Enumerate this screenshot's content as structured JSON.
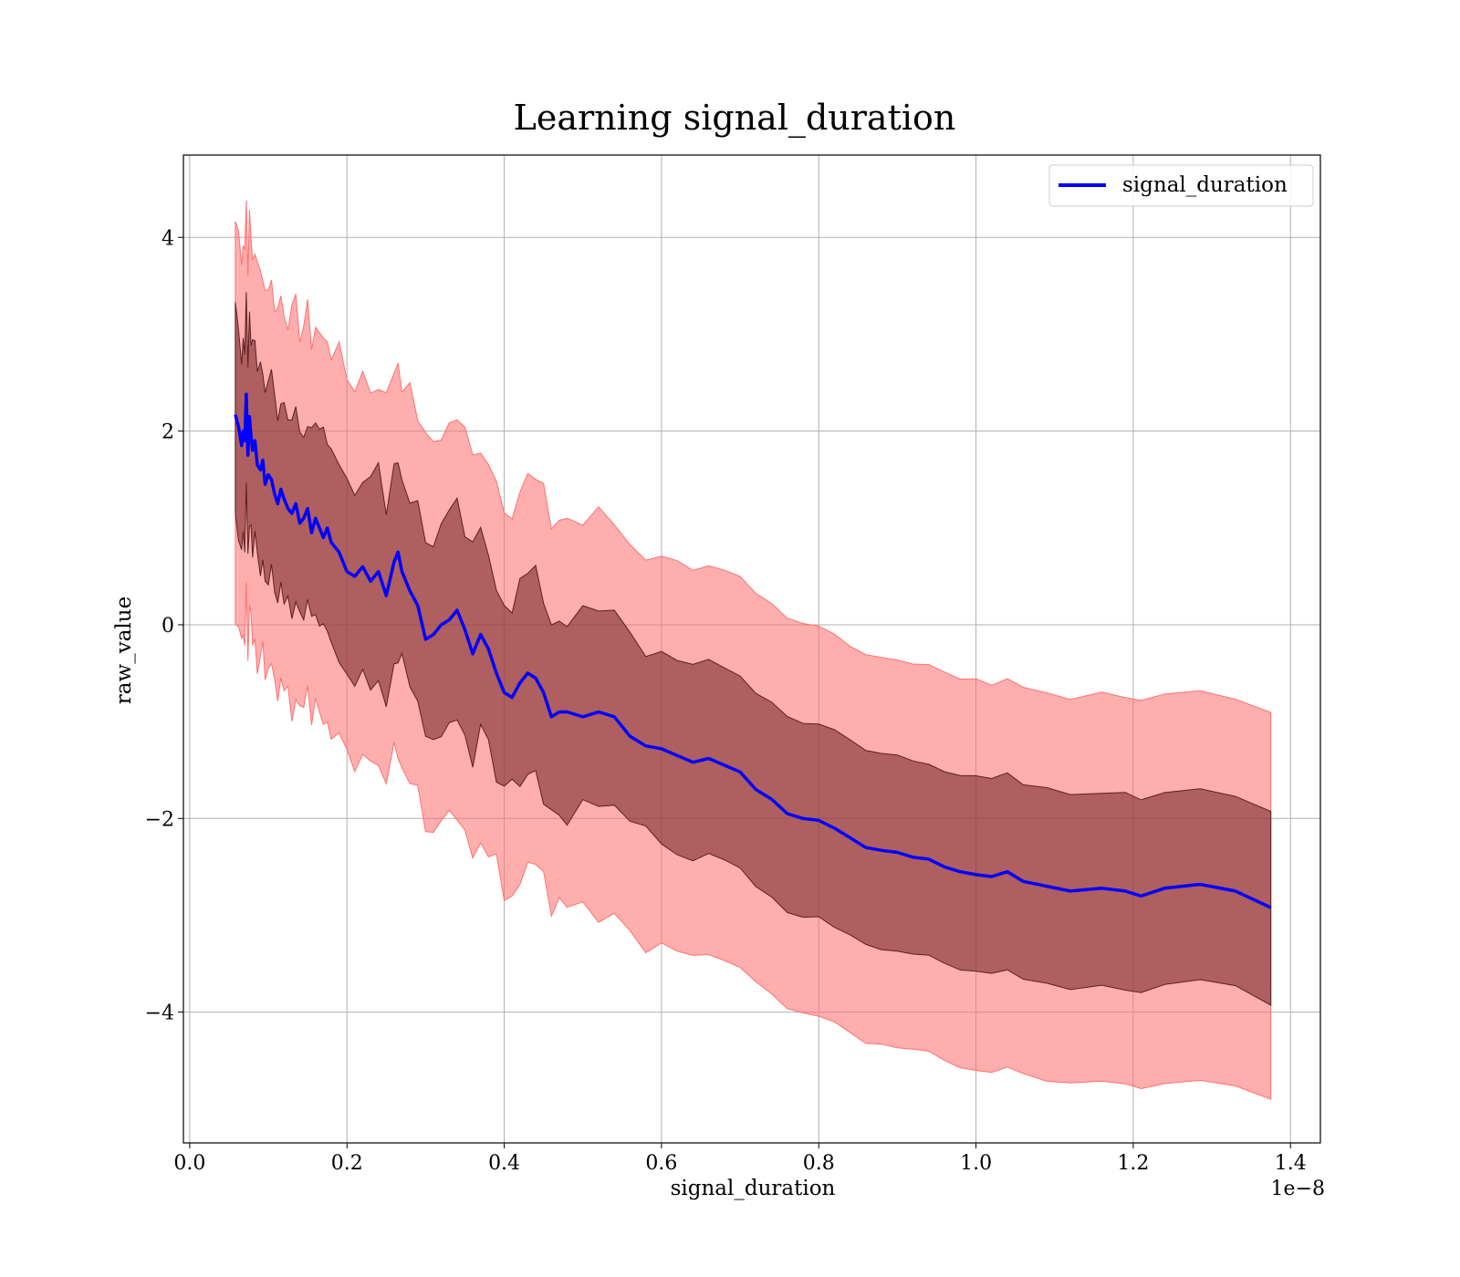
{
  "chart_data": {
    "type": "line",
    "title": "Learning signal_duration",
    "xlabel": "signal_duration",
    "ylabel": "raw_value",
    "x_offset_label": "1e−8",
    "xlim": [
      -0.008,
      1.438
    ],
    "ylim": [
      -5.35,
      4.85
    ],
    "x_ticks": [
      0.0,
      0.2,
      0.4,
      0.6,
      0.8,
      1.0,
      1.2,
      1.4
    ],
    "x_tick_labels": [
      "0.0",
      "0.2",
      "0.4",
      "0.6",
      "0.8",
      "1.0",
      "1.2",
      "1.4"
    ],
    "y_ticks": [
      4,
      2,
      0,
      -2,
      -4
    ],
    "y_tick_labels": [
      "4",
      "2",
      "0",
      "−2",
      "−4"
    ],
    "grid": true,
    "legend_position": "top-right",
    "colors": {
      "line": "#0000ff",
      "outer_band": "#ff6b6b",
      "outer_band_edge": "#ff7070",
      "inner_band": "#7a2a2a",
      "inner_band_edge": "#5a2020",
      "grid": "#b0b0b0"
    },
    "series": [
      {
        "name": "signal_duration",
        "x": [
          0.058,
          0.062,
          0.066,
          0.068,
          0.07,
          0.072,
          0.074,
          0.076,
          0.078,
          0.08,
          0.083,
          0.086,
          0.09,
          0.093,
          0.096,
          0.1,
          0.104,
          0.108,
          0.112,
          0.116,
          0.12,
          0.125,
          0.13,
          0.135,
          0.14,
          0.145,
          0.15,
          0.155,
          0.16,
          0.165,
          0.17,
          0.175,
          0.18,
          0.19,
          0.2,
          0.21,
          0.22,
          0.23,
          0.24,
          0.25,
          0.26,
          0.265,
          0.27,
          0.28,
          0.29,
          0.3,
          0.31,
          0.32,
          0.33,
          0.34,
          0.35,
          0.36,
          0.37,
          0.38,
          0.39,
          0.4,
          0.41,
          0.42,
          0.43,
          0.44,
          0.45,
          0.46,
          0.47,
          0.48,
          0.5,
          0.52,
          0.54,
          0.56,
          0.58,
          0.6,
          0.62,
          0.64,
          0.66,
          0.68,
          0.7,
          0.72,
          0.74,
          0.76,
          0.78,
          0.8,
          0.82,
          0.84,
          0.86,
          0.88,
          0.9,
          0.92,
          0.94,
          0.96,
          0.98,
          1.0,
          1.02,
          1.04,
          1.06,
          1.09,
          1.12,
          1.16,
          1.19,
          1.21,
          1.24,
          1.285,
          1.33,
          1.375
        ],
        "y": [
          2.17,
          2.05,
          1.85,
          2.0,
          1.9,
          2.38,
          1.75,
          2.15,
          1.95,
          1.8,
          1.9,
          1.65,
          1.6,
          1.7,
          1.45,
          1.55,
          1.5,
          1.35,
          1.25,
          1.4,
          1.3,
          1.2,
          1.15,
          1.25,
          1.05,
          1.1,
          1.2,
          0.95,
          1.1,
          1.0,
          0.9,
          1.0,
          0.85,
          0.75,
          0.55,
          0.5,
          0.6,
          0.45,
          0.55,
          0.3,
          0.65,
          0.75,
          0.55,
          0.35,
          0.2,
          -0.15,
          -0.1,
          0.0,
          0.05,
          0.15,
          -0.05,
          -0.3,
          -0.1,
          -0.25,
          -0.5,
          -0.7,
          -0.75,
          -0.6,
          -0.5,
          -0.55,
          -0.7,
          -0.95,
          -0.9,
          -0.9,
          -0.95,
          -0.9,
          -0.95,
          -1.15,
          -1.25,
          -1.28,
          -1.35,
          -1.42,
          -1.38,
          -1.45,
          -1.52,
          -1.7,
          -1.8,
          -1.95,
          -2.0,
          -2.02,
          -2.1,
          -2.2,
          -2.3,
          -2.33,
          -2.35,
          -2.4,
          -2.42,
          -2.5,
          -2.55,
          -2.58,
          -2.6,
          -2.55,
          -2.65,
          -2.7,
          -2.75,
          -2.72,
          -2.75,
          -2.8,
          -2.72,
          -2.68,
          -2.75,
          -2.92
        ]
      }
    ],
    "bands": [
      {
        "offset": 1.0,
        "fill_opacity": 0.6
      },
      {
        "offset": 2.0,
        "fill_opacity": 0.55
      }
    ]
  }
}
